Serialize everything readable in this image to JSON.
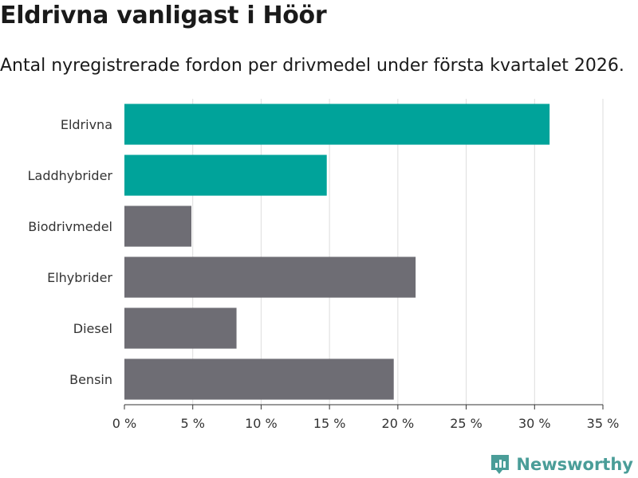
{
  "title": "Eldrivna vanligast i Höör",
  "subtitle": "Antal nyregistrerade fordon per drivmedel under första kvartalet 2026.",
  "brand": {
    "name": "Newsworthy",
    "icon": "newsworthy-logo-icon"
  },
  "colors": {
    "highlight": "#00a39a",
    "default": "#6e6d74",
    "grid": "#dddddd",
    "axis": "#333333"
  },
  "chart_data": {
    "type": "bar",
    "orientation": "horizontal",
    "title": "Eldrivna vanligast i Höör",
    "subtitle": "Antal nyregistrerade fordon per drivmedel under första kvartalet 2026.",
    "xlabel": "",
    "ylabel": "",
    "categories": [
      "Eldrivna",
      "Laddhybrider",
      "Biodrivmedel",
      "Elhybrider",
      "Diesel",
      "Bensin"
    ],
    "values": [
      31.1,
      14.8,
      4.9,
      21.3,
      8.2,
      19.7
    ],
    "highlighted": [
      true,
      true,
      false,
      false,
      false,
      false
    ],
    "xlim": [
      0,
      35
    ],
    "ticks": [
      0,
      5,
      10,
      15,
      20,
      25,
      30,
      35
    ],
    "tick_labels": [
      "0 %",
      "5 %",
      "10 %",
      "15 %",
      "20 %",
      "25 %",
      "30 %",
      "35 %"
    ],
    "grid": true
  }
}
